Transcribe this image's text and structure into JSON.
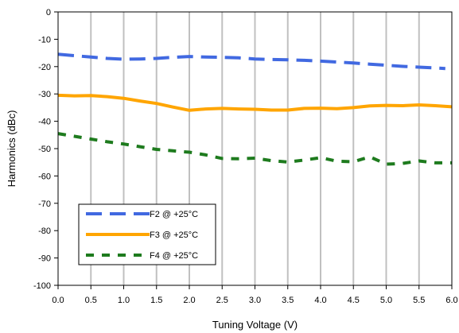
{
  "chart_data": {
    "type": "line",
    "xlabel": "Tuning Voltage (V)",
    "ylabel": "Harmonics (dBc)",
    "xlim": [
      0,
      6
    ],
    "ylim": [
      -100,
      0
    ],
    "x_ticks": [
      0,
      0.5,
      1,
      1.5,
      2,
      2.5,
      3,
      3.5,
      4,
      4.5,
      5,
      5.5,
      6
    ],
    "x_tick_labels": [
      "0.0",
      "0.5",
      "1.0",
      "1.5",
      "2.0",
      "2.5",
      "3.0",
      "3.5",
      "4.0",
      "4.5",
      "5.0",
      "5.5",
      "6.0"
    ],
    "y_ticks": [
      0,
      -10,
      -20,
      -30,
      -40,
      -50,
      -60,
      -70,
      -80,
      -90,
      -100
    ],
    "y_tick_labels": [
      "0",
      "-10",
      "-20",
      "-30",
      "-40",
      "-50",
      "-60",
      "-70",
      "-80",
      "-90",
      "-100"
    ],
    "grid": {
      "vertical": true,
      "horizontal": false
    },
    "legend_position": "bottom-left",
    "series": [
      {
        "name": "F2 @ +25°C",
        "color": "#4169E1",
        "style": "long-dash",
        "x": [
          0,
          0.25,
          0.5,
          0.75,
          1,
          1.25,
          1.5,
          1.75,
          2,
          2.25,
          2.5,
          2.75,
          3,
          3.25,
          3.5,
          3.75,
          4,
          4.25,
          4.5,
          4.75,
          5,
          5.25,
          5.5,
          5.75,
          5.9
        ],
        "y": [
          -15.5,
          -16,
          -16.5,
          -17,
          -17.3,
          -17.2,
          -17,
          -16.6,
          -16.3,
          -16.5,
          -16.6,
          -16.8,
          -17.2,
          -17.4,
          -17.5,
          -17.7,
          -18,
          -18.3,
          -18.7,
          -19.1,
          -19.5,
          -19.9,
          -20.2,
          -20.5,
          -20.7
        ]
      },
      {
        "name": "F3 @ +25°C",
        "color": "#FFA500",
        "style": "solid",
        "x": [
          0,
          0.25,
          0.5,
          0.75,
          1,
          1.25,
          1.5,
          1.75,
          2,
          2.25,
          2.5,
          2.75,
          3,
          3.25,
          3.5,
          3.75,
          4,
          4.25,
          4.5,
          4.75,
          5,
          5.25,
          5.5,
          5.75,
          6
        ],
        "y": [
          -30.5,
          -30.7,
          -30.6,
          -31,
          -31.6,
          -32.6,
          -33.5,
          -34.8,
          -36,
          -35.5,
          -35.3,
          -35.5,
          -35.6,
          -35.9,
          -35.9,
          -35.3,
          -35.2,
          -35.4,
          -35,
          -34.4,
          -34.2,
          -34.3,
          -34,
          -34.3,
          -34.7
        ]
      },
      {
        "name": "F4 @ +25°C",
        "color": "#1E7B1E",
        "style": "dashed",
        "x": [
          0,
          0.25,
          0.5,
          0.75,
          1,
          1.25,
          1.5,
          1.75,
          2,
          2.25,
          2.5,
          2.75,
          3,
          3.25,
          3.5,
          3.75,
          4,
          4.25,
          4.5,
          4.75,
          5,
          5.25,
          5.5,
          5.75,
          6
        ],
        "y": [
          -44.5,
          -45.5,
          -46.5,
          -47.5,
          -48.3,
          -49.3,
          -50.3,
          -50.8,
          -51.3,
          -52.3,
          -53.6,
          -53.7,
          -53.5,
          -54.4,
          -54.9,
          -54.2,
          -53.3,
          -54.6,
          -54.8,
          -53,
          -55.7,
          -55.4,
          -54.5,
          -55.2,
          -55.2
        ]
      }
    ]
  }
}
